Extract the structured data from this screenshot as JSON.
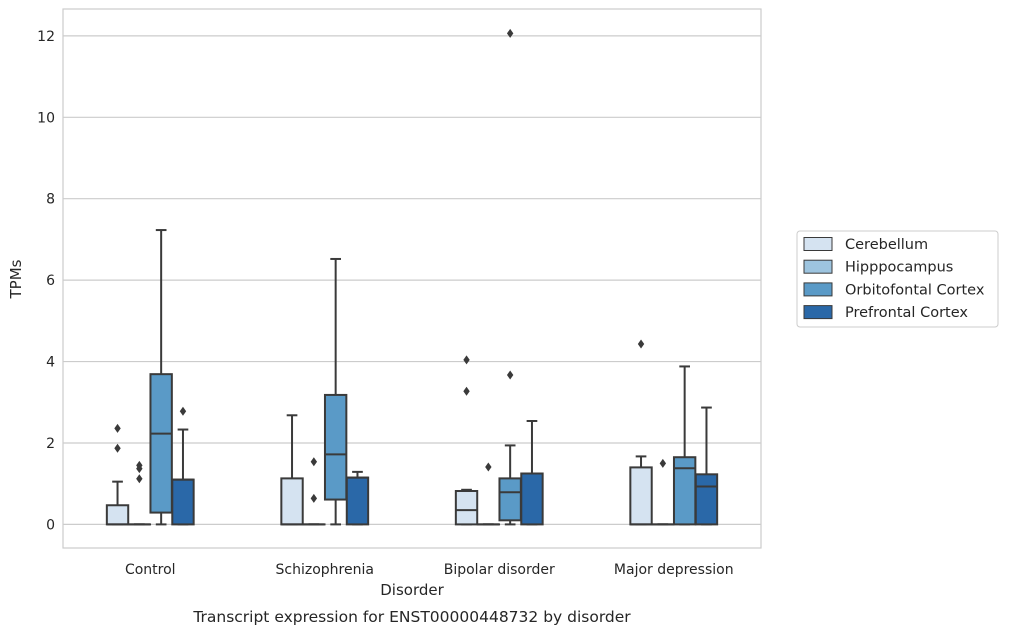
{
  "chart_data": {
    "type": "box",
    "xlabel": "Disorder",
    "ylabel": "TPMs",
    "caption": "Transcript expression for ENST00000448732 by disorder",
    "categories": [
      "Control",
      "Schizophrenia",
      "Bipolar disorder",
      "Major depression"
    ],
    "ylim": [
      -0.58,
      12.66
    ],
    "yticks": [
      0,
      2,
      4,
      6,
      8,
      10,
      12
    ],
    "grid": "horizontal",
    "legend_position": "right",
    "series": [
      {
        "name": "Cerebellum",
        "color": "#d5e3f1",
        "boxes": [
          {
            "q1": 0,
            "median": 0,
            "q3": 0.47,
            "whislo": 0,
            "whishi": 1.05,
            "fliers": [
              2.36,
              1.87
            ]
          },
          {
            "q1": 0,
            "median": 0,
            "q3": 1.13,
            "whislo": 0,
            "whishi": 2.68,
            "fliers": []
          },
          {
            "q1": 0,
            "median": 0.35,
            "q3": 0.82,
            "whislo": 0,
            "whishi": 0.85,
            "fliers": [
              4.04,
              3.27
            ]
          },
          {
            "q1": 0,
            "median": 0,
            "q3": 1.4,
            "whislo": 0,
            "whishi": 1.67,
            "fliers": [
              4.43
            ]
          }
        ]
      },
      {
        "name": "Hipppocampus",
        "color": "#9dc4df",
        "boxes": [
          {
            "q1": 0,
            "median": 0,
            "q3": 0,
            "whislo": 0,
            "whishi": 0,
            "fliers": [
              1.45,
              1.37,
              1.12
            ]
          },
          {
            "q1": 0,
            "median": 0,
            "q3": 0,
            "whislo": 0,
            "whishi": 0,
            "fliers": [
              1.54,
              0.64
            ]
          },
          {
            "q1": 0,
            "median": 0,
            "q3": 0,
            "whislo": 0,
            "whishi": 0,
            "fliers": [
              1.41
            ]
          },
          {
            "q1": 0,
            "median": 0,
            "q3": 0,
            "whislo": 0,
            "whishi": 0,
            "fliers": [
              1.5
            ]
          }
        ]
      },
      {
        "name": "Orbitofontal Cortex",
        "color": "#5a9ac7",
        "boxes": [
          {
            "q1": 0.29,
            "median": 2.23,
            "q3": 3.69,
            "whislo": 0,
            "whishi": 7.23,
            "fliers": []
          },
          {
            "q1": 0.61,
            "median": 1.72,
            "q3": 3.18,
            "whislo": 0,
            "whishi": 6.52,
            "fliers": []
          },
          {
            "q1": 0.1,
            "median": 0.79,
            "q3": 1.13,
            "whislo": 0,
            "whishi": 1.94,
            "fliers": [
              3.67,
              12.06
            ]
          },
          {
            "q1": 0,
            "median": 1.38,
            "q3": 1.65,
            "whislo": 0,
            "whishi": 3.88,
            "fliers": []
          }
        ]
      },
      {
        "name": "Prefrontal Cortex",
        "color": "#2a68a8",
        "boxes": [
          {
            "q1": 0,
            "median": 1.1,
            "q3": 1.1,
            "whislo": 0,
            "whishi": 2.33,
            "fliers": [
              2.78
            ]
          },
          {
            "q1": 0,
            "median": 1.15,
            "q3": 1.15,
            "whislo": 0,
            "whishi": 1.29,
            "fliers": []
          },
          {
            "q1": 0,
            "median": 1.25,
            "q3": 1.25,
            "whislo": 0,
            "whishi": 2.54,
            "fliers": []
          },
          {
            "q1": 0,
            "median": 0.93,
            "q3": 1.23,
            "whislo": 0,
            "whishi": 2.87,
            "fliers": []
          }
        ]
      }
    ]
  }
}
